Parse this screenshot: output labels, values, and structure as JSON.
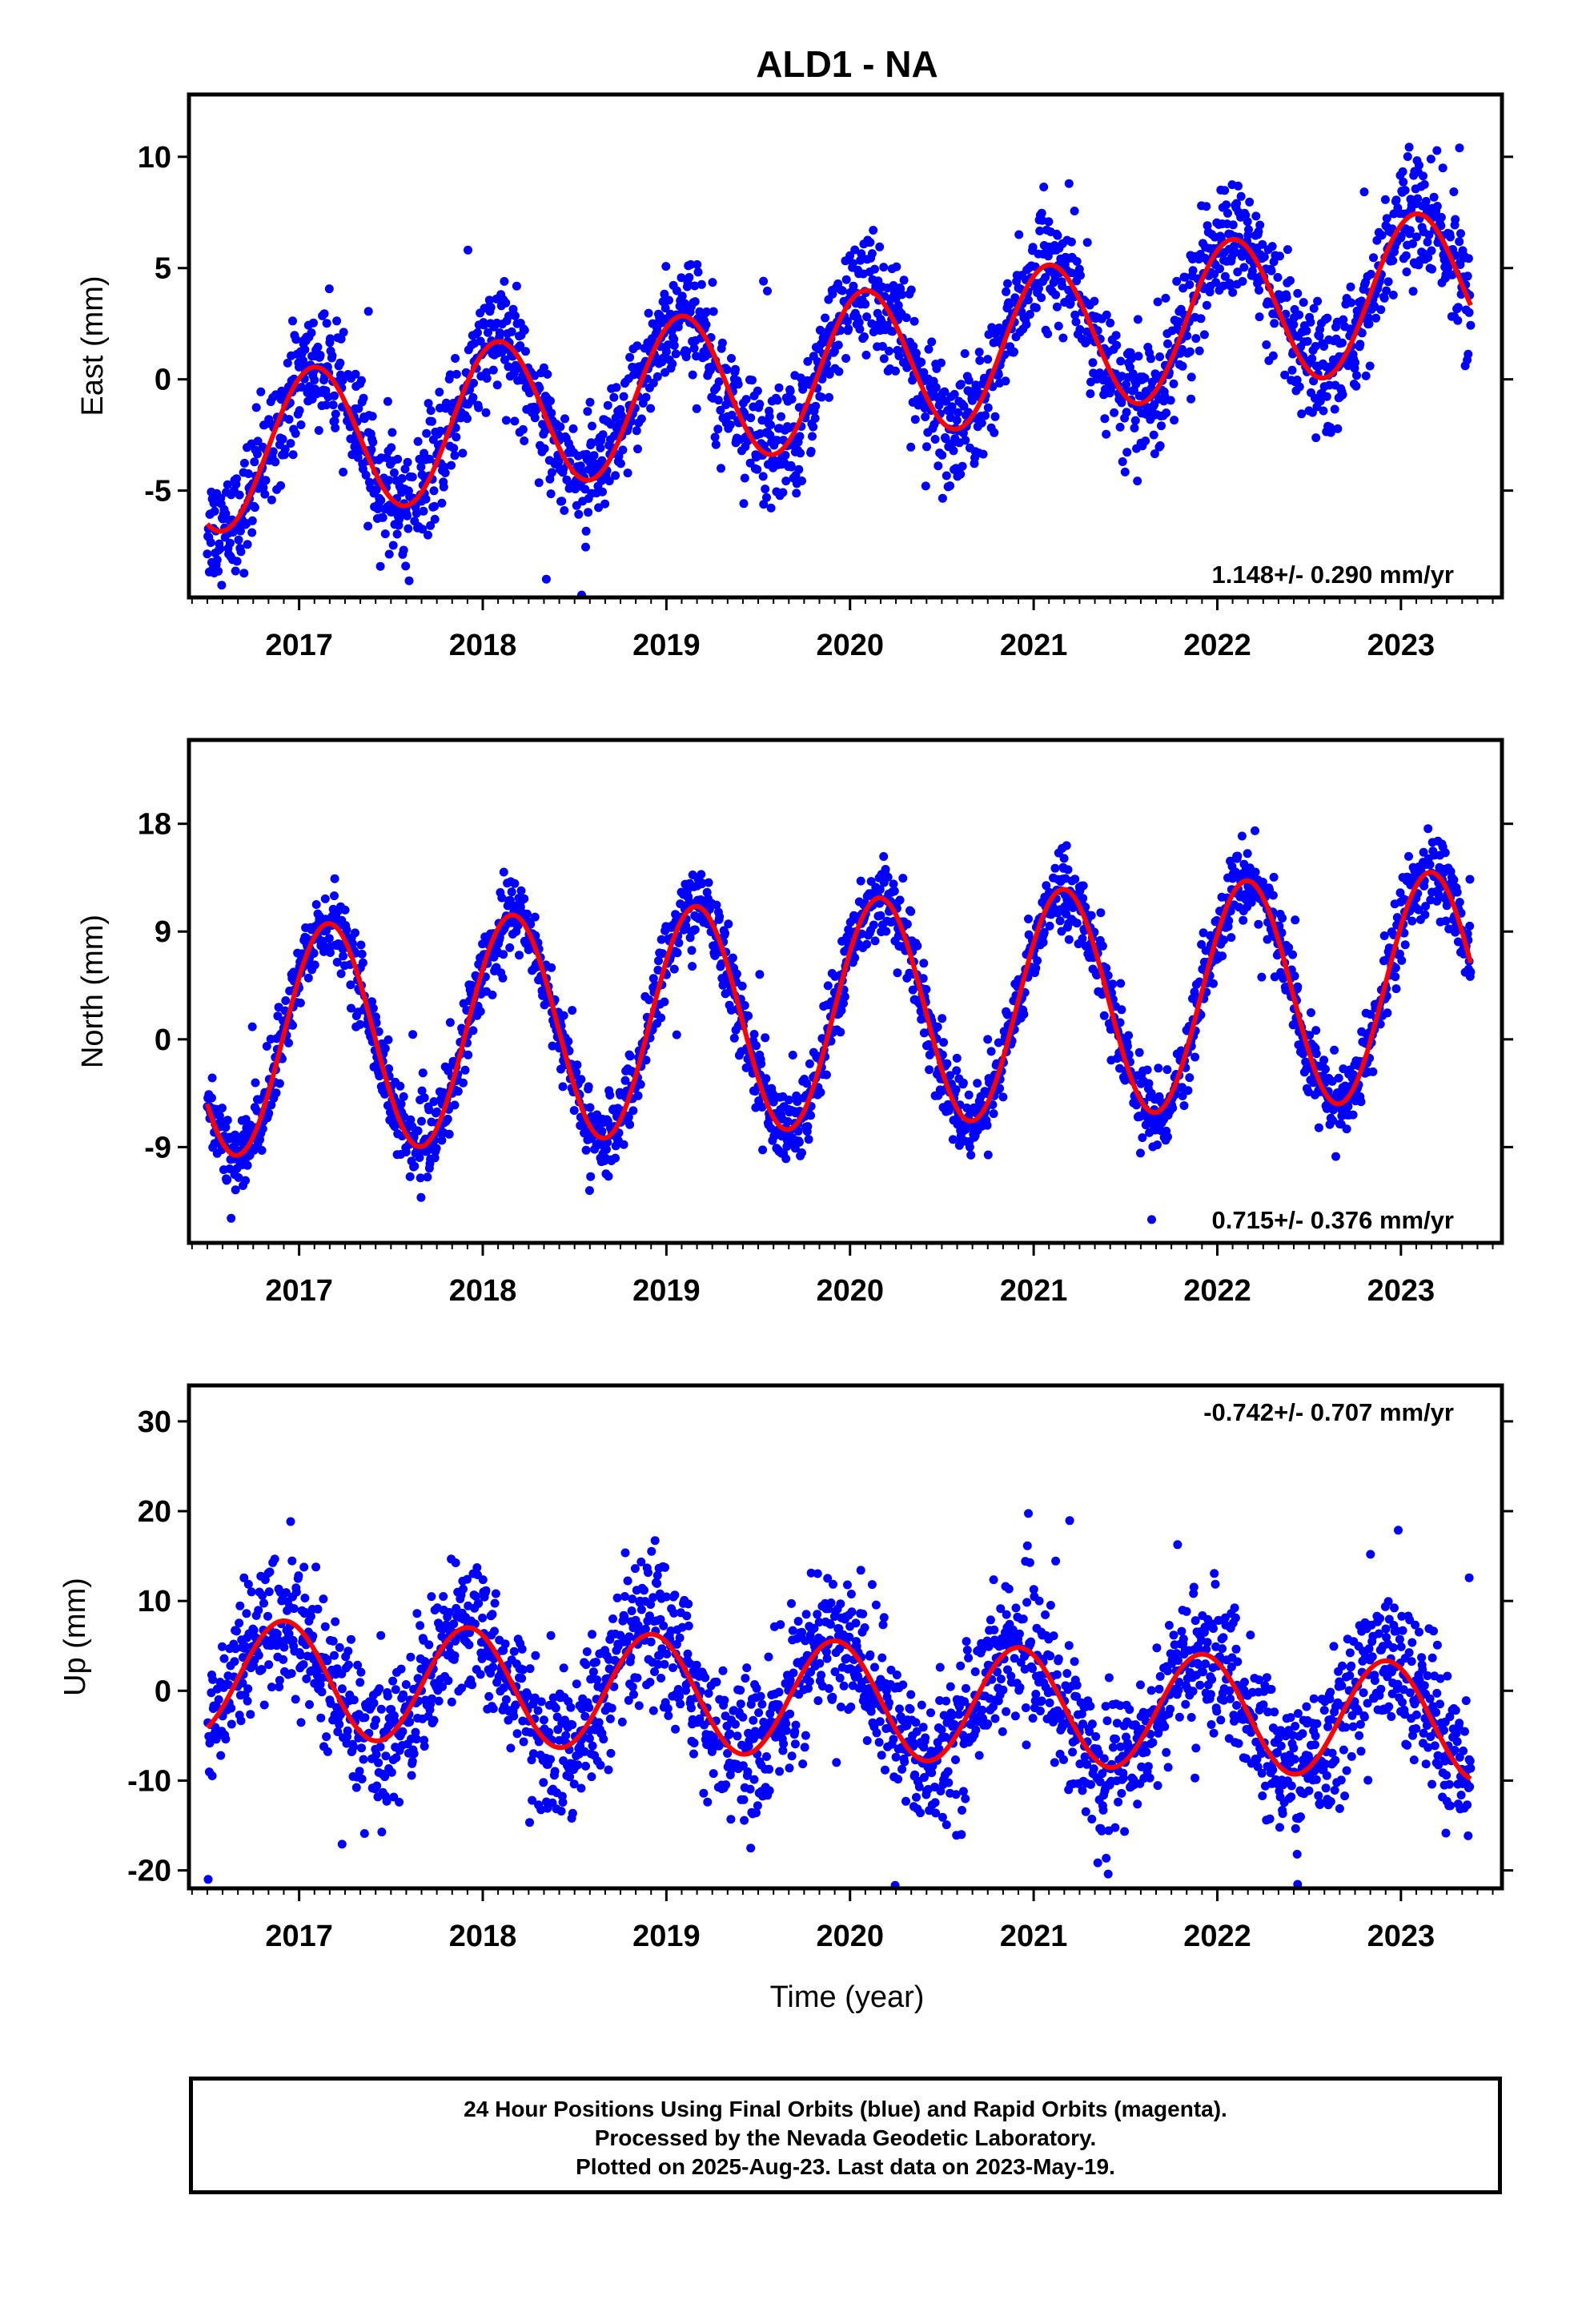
{
  "title": "ALD1 - NA",
  "xlabel": "Time (year)",
  "footer": {
    "line1": "24 Hour Positions Using Final Orbits (blue) and Rapid Orbits (magenta).",
    "line2": "Processed by the Nevada Geodetic Laboratory.",
    "line3": "Plotted on 2025-Aug-23. Last data on 2023-May-19."
  },
  "colors": {
    "final_orbits": "#0000ff",
    "rapid_orbits": "#ff00ff",
    "model": "#ff0000",
    "axes": "#000000"
  },
  "chart_data": [
    {
      "type": "scatter",
      "ylabel": "East (mm)",
      "xlim": [
        2016.4,
        2023.55
      ],
      "ylim": [
        -9.8,
        12.8
      ],
      "yticks": [
        10,
        5,
        0,
        -5
      ],
      "xticks": [
        2017,
        2018,
        2019,
        2020,
        2021,
        2022,
        2023
      ],
      "rate": "1.148+/- 0.290 mm/yr",
      "rate_position": "bottom-right",
      "model": {
        "trend_mm_per_yr": 1.148,
        "amplitude": 3.4,
        "offset_at_2020": 0.5,
        "peak_year_fraction": 0.08,
        "noise": 1.3,
        "start_value": -7.2
      },
      "series": [
        {
          "name": "Final Orbits",
          "x_range": [
            2016.5,
            2023.38
          ]
        }
      ]
    },
    {
      "type": "scatter",
      "ylabel": "North (mm)",
      "xlim": [
        2016.4,
        2023.55
      ],
      "ylim": [
        -17.0,
        25.0
      ],
      "yticks": [
        18,
        9,
        0,
        -9
      ],
      "xticks": [
        2017,
        2018,
        2019,
        2020,
        2021,
        2022,
        2023
      ],
      "rate": "0.715+/- 0.376 mm/yr",
      "rate_position": "bottom-right",
      "model": {
        "trend_mm_per_yr": 0.715,
        "amplitude": 9.5,
        "offset_at_2020": 2.2,
        "peak_year_fraction": 0.16,
        "noise": 1.6,
        "start_value": -6.5
      },
      "series": [
        {
          "name": "Final Orbits",
          "x_range": [
            2016.5,
            2023.38
          ]
        }
      ]
    },
    {
      "type": "scatter",
      "ylabel": "Up (mm)",
      "xlim": [
        2016.4,
        2023.55
      ],
      "ylim": [
        -22.0,
        34.0
      ],
      "yticks": [
        30,
        20,
        10,
        0,
        -10,
        -20
      ],
      "xticks": [
        2017,
        2018,
        2019,
        2020,
        2021,
        2022,
        2023
      ],
      "rate": "-0.742+/- 0.707 mm/yr",
      "rate_position": "top-right",
      "model": {
        "trend_mm_per_yr": -0.742,
        "amplitude": 6.5,
        "offset_at_2020": -1.0,
        "peak_year_fraction": 0.92,
        "noise": 4.0,
        "start_value": -1.5
      },
      "series": [
        {
          "name": "Final Orbits",
          "x_range": [
            2016.5,
            2023.38
          ]
        }
      ]
    }
  ]
}
